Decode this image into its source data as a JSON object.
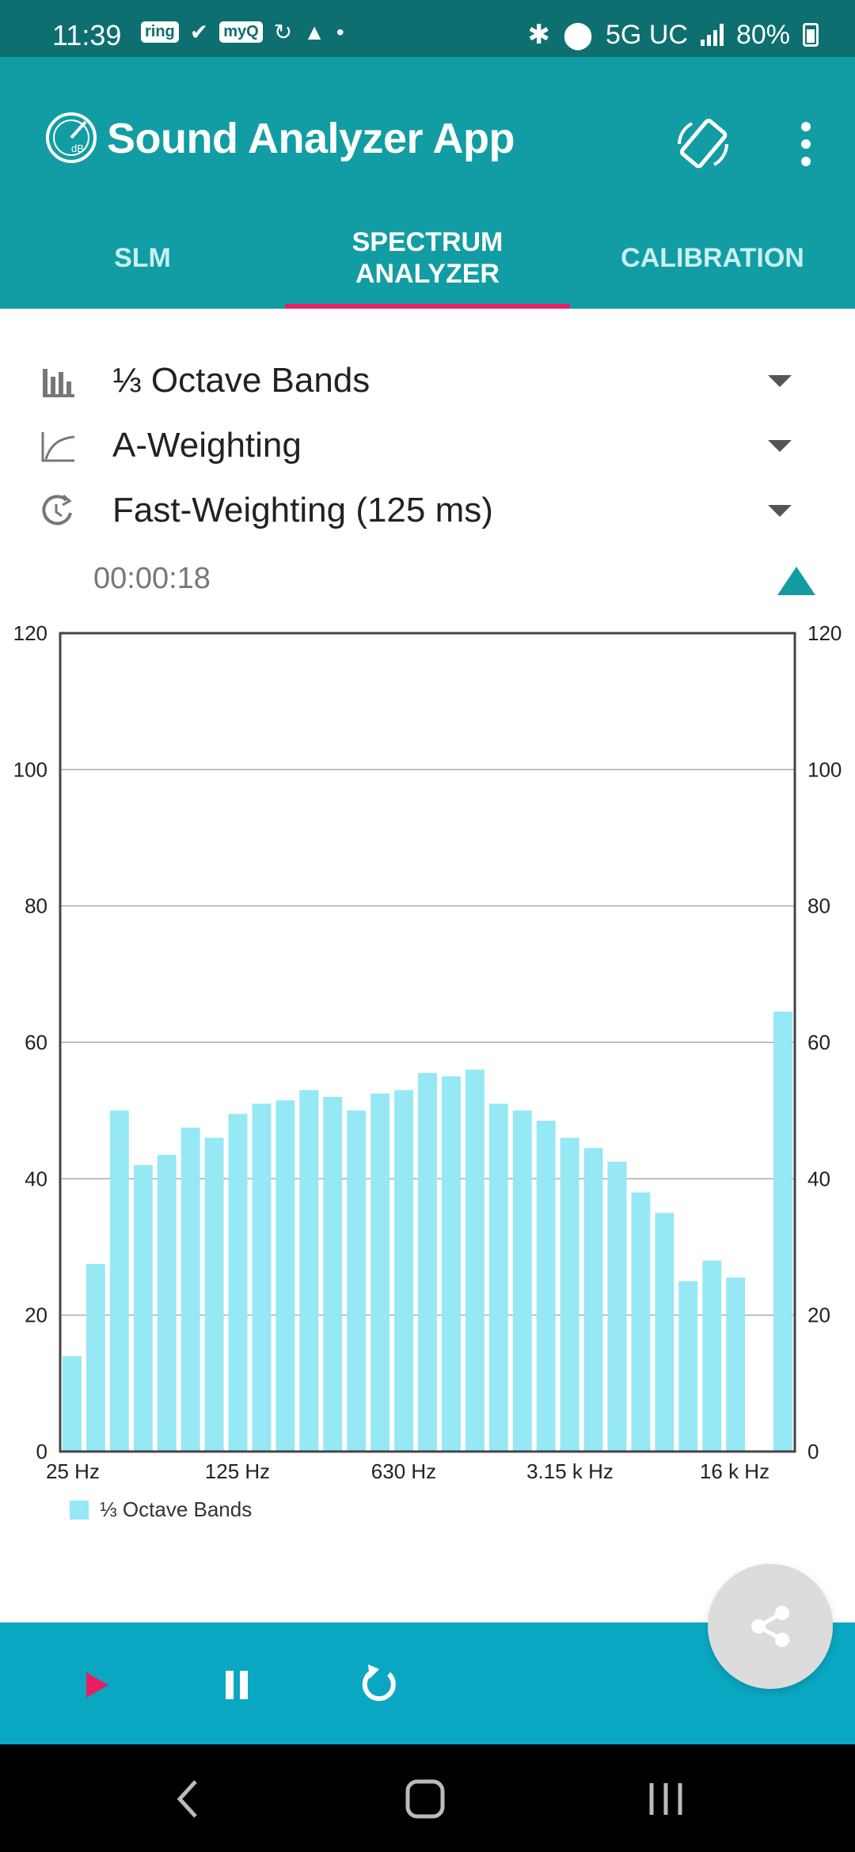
{
  "status_bar": {
    "time": "11:39",
    "notifications": [
      "ring",
      "myQ"
    ],
    "network": "5G UC",
    "battery": "80%"
  },
  "app": {
    "title": "Sound Analyzer App",
    "tabs": [
      {
        "label": "SLM",
        "active": false
      },
      {
        "label": "SPECTRUM ANALYZER",
        "active": true
      },
      {
        "label": "CALIBRATION",
        "active": false
      }
    ]
  },
  "selectors": {
    "band_mode": "⅓ Octave Bands",
    "weighting": "A-Weighting",
    "time_weighting": "Fast-Weighting (125 ms)"
  },
  "timer": "00:00:18",
  "chart_data": {
    "type": "bar",
    "x_tick_labels": [
      "25 Hz",
      "125 Hz",
      "630 Hz",
      "3.15 k Hz",
      "16 k Hz"
    ],
    "values": [
      14,
      27.5,
      50,
      42,
      43.5,
      47.5,
      46,
      49.5,
      51,
      51.5,
      53,
      52,
      50,
      52.5,
      53,
      55.5,
      55,
      56,
      51,
      50,
      48.5,
      46,
      44.5,
      42.5,
      38,
      35,
      25,
      28,
      25.5,
      0,
      64.5
    ],
    "ylim": [
      0,
      120
    ],
    "y_ticks": [
      0,
      20,
      40,
      60,
      80,
      100,
      120
    ],
    "legend": [
      "⅓ Octave Bands"
    ],
    "grid": true,
    "legend_position": "bottom-left",
    "bar_color": "#96e8f5"
  },
  "colors": {
    "status_bar": "#0d6f6f",
    "app_bar": "#119da3",
    "tab_indicator": "#e91e63",
    "controls_bar": "#0aa7c2",
    "play": "#e91e63"
  }
}
